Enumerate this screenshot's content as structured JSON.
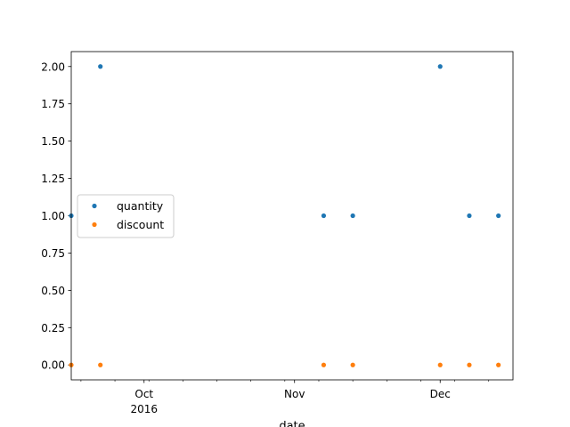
{
  "chart_data": {
    "type": "scatter",
    "title": "",
    "xlabel": "date",
    "ylabel": "",
    "x_range": [
      "2016-09-16",
      "2016-12-16"
    ],
    "ylim": [
      -0.1,
      2.1
    ],
    "y_ticks": [
      0.0,
      0.25,
      0.5,
      0.75,
      1.0,
      1.25,
      1.5,
      1.75,
      2.0
    ],
    "y_tick_labels": [
      "0.00",
      "0.25",
      "0.50",
      "0.75",
      "1.00",
      "1.25",
      "1.50",
      "1.75",
      "2.00"
    ],
    "x_major_ticks": [
      {
        "date": "2016-10-01",
        "label": "Oct",
        "sublabel": "2016"
      },
      {
        "date": "2016-11-01",
        "label": "Nov",
        "sublabel": ""
      },
      {
        "date": "2016-12-01",
        "label": "Dec",
        "sublabel": ""
      }
    ],
    "x_minor_ticks": [
      "2016-09-18",
      "2016-09-25",
      "2016-10-02",
      "2016-10-09",
      "2016-10-16",
      "2016-10-23",
      "2016-10-30",
      "2016-11-06",
      "2016-11-13",
      "2016-11-20",
      "2016-11-27",
      "2016-12-04",
      "2016-12-11"
    ],
    "grid": false,
    "legend_position": "center-left",
    "x": [
      "2016-09-16",
      "2016-09-22",
      "2016-11-07",
      "2016-11-13",
      "2016-12-01",
      "2016-12-07",
      "2016-12-13"
    ],
    "series": [
      {
        "name": "quantity",
        "color": "#1f77b4",
        "values": [
          1,
          2,
          1,
          1,
          2,
          1,
          1
        ]
      },
      {
        "name": "discount",
        "color": "#ff7f0e",
        "values": [
          0,
          0,
          0,
          0,
          0,
          0,
          0
        ]
      }
    ]
  }
}
